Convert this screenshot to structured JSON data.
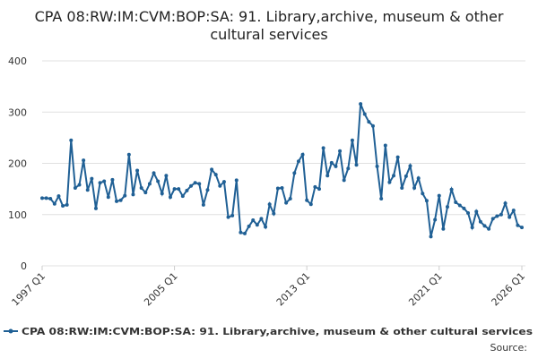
{
  "chart_data": {
    "type": "line",
    "title": "CPA 08:RW:IM:CVM:BOP:SA: 91. Library,archive, museum & other cultural services",
    "source_label": "Source:",
    "categories": [
      "1997 Q1",
      null,
      null,
      null,
      null,
      null,
      null,
      null,
      null,
      null,
      null,
      null,
      null,
      null,
      null,
      null,
      null,
      null,
      null,
      null,
      null,
      null,
      null,
      null,
      null,
      null,
      null,
      null,
      null,
      null,
      null,
      null,
      "2005 Q1",
      null,
      null,
      null,
      null,
      null,
      null,
      null,
      null,
      null,
      null,
      null,
      null,
      null,
      null,
      null,
      null,
      null,
      null,
      null,
      null,
      null,
      null,
      null,
      null,
      null,
      null,
      null,
      null,
      null,
      null,
      null,
      "2013 Q1",
      null,
      null,
      null,
      null,
      null,
      null,
      null,
      null,
      null,
      null,
      null,
      null,
      null,
      null,
      null,
      null,
      null,
      null,
      null,
      null,
      null,
      null,
      null,
      null,
      null,
      null,
      null,
      null,
      null,
      null,
      null,
      "2021 Q1",
      null,
      null,
      null,
      null,
      null,
      null,
      null,
      null,
      null,
      null,
      null,
      null,
      null,
      null,
      null,
      null,
      null,
      null,
      null,
      "2026 Q1"
    ],
    "series": [
      {
        "name": "CPA 08:RW:IM:CVM:BOP:SA: 91. Library,archive, museum & other cultural services",
        "color": "#206095",
        "values": [
          132,
          132,
          131,
          121,
          136,
          117,
          119,
          245,
          152,
          158,
          206,
          148,
          170,
          112,
          162,
          165,
          134,
          168,
          126,
          128,
          137,
          217,
          139,
          186,
          152,
          143,
          160,
          181,
          165,
          141,
          176,
          134,
          150,
          150,
          136,
          147,
          156,
          162,
          160,
          119,
          148,
          188,
          178,
          156,
          164,
          95,
          98,
          167,
          65,
          63,
          77,
          89,
          80,
          92,
          76,
          120,
          102,
          151,
          152,
          123,
          131,
          181,
          204,
          217,
          128,
          120,
          154,
          150,
          230,
          176,
          201,
          194,
          224,
          167,
          190,
          245,
          197,
          316,
          296,
          281,
          273,
          194,
          131,
          235,
          163,
          176,
          212,
          152,
          175,
          195,
          152,
          171,
          141,
          127,
          57,
          90,
          137,
          72,
          115,
          149,
          124,
          118,
          112,
          103,
          75,
          106,
          86,
          78,
          72,
          92,
          97,
          100,
          122,
          95,
          108,
          79,
          75
        ]
      }
    ],
    "ylim": [
      0,
      400
    ],
    "yticks": [
      0,
      100,
      200,
      300,
      400
    ],
    "grid": true,
    "legend": "bottom"
  }
}
